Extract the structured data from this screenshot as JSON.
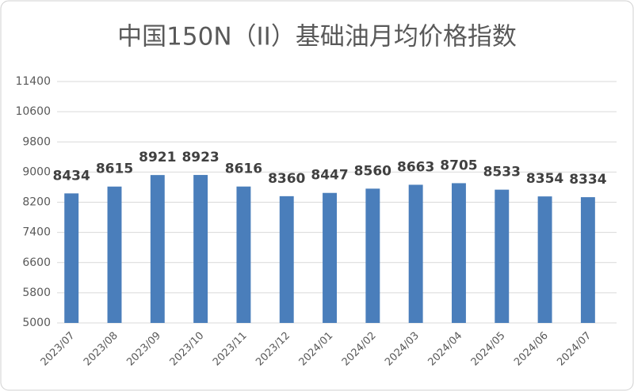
{
  "chart_data": {
    "type": "bar",
    "title": "中国150N（II）基础油月均价格指数",
    "categories": [
      "2023/07",
      "2023/08",
      "2023/09",
      "2023/10",
      "2023/11",
      "2023/12",
      "2024/01",
      "2024/02",
      "2024/03",
      "2024/04",
      "2024/05",
      "2024/06",
      "2024/07"
    ],
    "values": [
      8434,
      8615,
      8921,
      8923,
      8616,
      8360,
      8447,
      8560,
      8663,
      8705,
      8533,
      8354,
      8334
    ],
    "color": "#4a7ebb",
    "ylim": [
      5000,
      11400
    ],
    "yticks": [
      5000,
      5800,
      6600,
      7400,
      8200,
      9000,
      9800,
      10600,
      11400
    ],
    "grid": true
  }
}
